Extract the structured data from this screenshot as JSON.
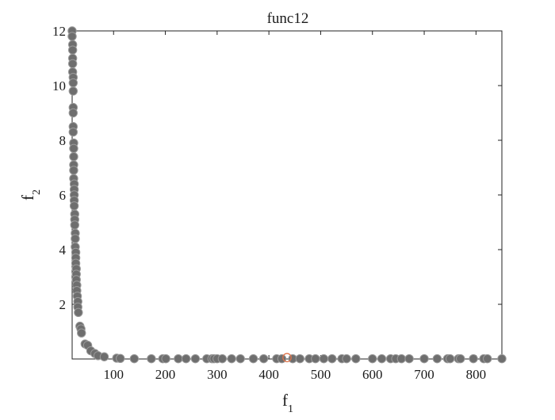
{
  "chart_data": {
    "type": "scatter",
    "title": "func12",
    "xlabel": {
      "base": "f",
      "sub": "1"
    },
    "ylabel": {
      "base": "f",
      "sub": "2"
    },
    "xlim": [
      20,
      850
    ],
    "ylim": [
      0,
      12
    ],
    "xticks": [
      100,
      200,
      300,
      400,
      500,
      600,
      700,
      800
    ],
    "yticks": [
      2,
      4,
      6,
      8,
      10,
      12
    ],
    "grid": false,
    "box": true,
    "series": [
      {
        "color": "#6e6e6e",
        "edge_color": "#9a9a9a",
        "points": [
          [
            20,
            12.0
          ],
          [
            20,
            11.8
          ],
          [
            21,
            11.5
          ],
          [
            21,
            11.3
          ],
          [
            21,
            11.0
          ],
          [
            21,
            10.8
          ],
          [
            21,
            10.5
          ],
          [
            22,
            10.3
          ],
          [
            22,
            10.1
          ],
          [
            22,
            9.8
          ],
          [
            22,
            9.2
          ],
          [
            22,
            9.0
          ],
          [
            22,
            8.5
          ],
          [
            22,
            8.3
          ],
          [
            23,
            7.9
          ],
          [
            23,
            7.7
          ],
          [
            23,
            7.4
          ],
          [
            23,
            7.1
          ],
          [
            23,
            6.9
          ],
          [
            23,
            6.6
          ],
          [
            24,
            6.4
          ],
          [
            24,
            6.2
          ],
          [
            24,
            6.0
          ],
          [
            24,
            5.8
          ],
          [
            24,
            5.6
          ],
          [
            25,
            5.3
          ],
          [
            25,
            5.1
          ],
          [
            25,
            4.9
          ],
          [
            26,
            4.6
          ],
          [
            26,
            4.4
          ],
          [
            26,
            4.1
          ],
          [
            27,
            3.9
          ],
          [
            27,
            3.7
          ],
          [
            27,
            3.5
          ],
          [
            28,
            3.3
          ],
          [
            28,
            3.1
          ],
          [
            28,
            2.9
          ],
          [
            29,
            2.7
          ],
          [
            29,
            2.5
          ],
          [
            30,
            2.3
          ],
          [
            31,
            2.1
          ],
          [
            31,
            1.9
          ],
          [
            32,
            1.7
          ],
          [
            35,
            1.2
          ],
          [
            37,
            1.1
          ],
          [
            38,
            0.95
          ],
          [
            45,
            0.55
          ],
          [
            50,
            0.5
          ],
          [
            56,
            0.3
          ],
          [
            64,
            0.2
          ],
          [
            70,
            0.12
          ],
          [
            82,
            0.08
          ],
          [
            106,
            0.03
          ],
          [
            113,
            0.02
          ],
          [
            140,
            0.01
          ],
          [
            173,
            0.01
          ],
          [
            195,
            0.01
          ],
          [
            201,
            0.01
          ],
          [
            225,
            0.01
          ],
          [
            240,
            0.01
          ],
          [
            258,
            0.01
          ],
          [
            280,
            0.01
          ],
          [
            290,
            0.01
          ],
          [
            294,
            0.01
          ],
          [
            300,
            0.01
          ],
          [
            310,
            0.01
          ],
          [
            328,
            0.01
          ],
          [
            345,
            0.01
          ],
          [
            370,
            0.01
          ],
          [
            390,
            0.01
          ],
          [
            415,
            0.01
          ],
          [
            425,
            0.01
          ],
          [
            446,
            0.01
          ],
          [
            460,
            0.01
          ],
          [
            478,
            0.01
          ],
          [
            490,
            0.01
          ],
          [
            506,
            0.01
          ],
          [
            522,
            0.01
          ],
          [
            541,
            0.01
          ],
          [
            550,
            0.01
          ],
          [
            568,
            0.01
          ],
          [
            600,
            0.01
          ],
          [
            618,
            0.01
          ],
          [
            635,
            0.01
          ],
          [
            645,
            0.01
          ],
          [
            656,
            0.01
          ],
          [
            671,
            0.01
          ],
          [
            700,
            0.01
          ],
          [
            725,
            0.01
          ],
          [
            745,
            0.01
          ],
          [
            750,
            0.01
          ],
          [
            766,
            0.01
          ],
          [
            770,
            0.01
          ],
          [
            795,
            0.01
          ],
          [
            815,
            0.01
          ],
          [
            822,
            0.01
          ],
          [
            850,
            0.01
          ]
        ]
      },
      {
        "marker": "open-circle",
        "color": "#e0744a",
        "points": [
          [
            435,
            0.05
          ]
        ]
      }
    ]
  }
}
